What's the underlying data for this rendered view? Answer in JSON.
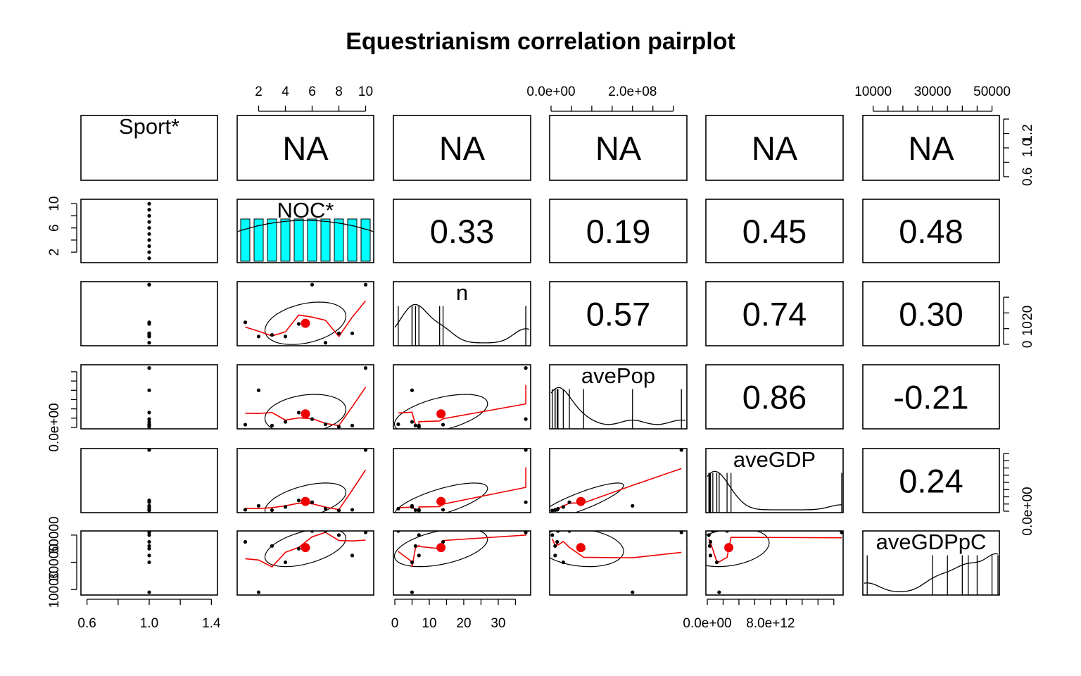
{
  "figure": {
    "title": "Equestrianism correlation pairplot"
  },
  "chart_data": {
    "type": "pairplot",
    "title": "Equestrianism correlation pairplot",
    "variables": [
      "Sport*",
      "NOC*",
      "n",
      "avePop",
      "aveGDP",
      "aveGDPpC"
    ],
    "upper_panel_values": [
      [
        "",
        "NA",
        "NA",
        "NA",
        "NA",
        "NA"
      ],
      [
        "",
        "",
        "0.33",
        "0.19",
        "0.45",
        "0.48"
      ],
      [
        "",
        "",
        "",
        "0.57",
        "0.74",
        "0.30"
      ],
      [
        "",
        "",
        "",
        "",
        "0.86",
        "-0.21"
      ],
      [
        "",
        "",
        "",
        "",
        "",
        "0.24"
      ],
      [
        "",
        "",
        "",
        "",
        "",
        ""
      ]
    ],
    "ranges": [
      [
        0.57,
        1.43
      ],
      [
        0.5,
        10.5
      ],
      [
        0,
        39
      ],
      [
        0,
        330000000.0
      ],
      [
        0,
        17000000000000.0
      ],
      [
        7000,
        52000
      ]
    ],
    "axis_ticks": {
      "top": [
        {
          "var": 1,
          "values": [
            2,
            4,
            6,
            8,
            10
          ],
          "labels": [
            "2",
            "4",
            "6",
            "8",
            "10"
          ],
          "minor": []
        },
        {
          "var": 3,
          "values": [
            0,
            200000000.0
          ],
          "labels": [
            "0.0e+00",
            "2.0e+08"
          ],
          "minor": [
            50000000.0,
            100000000.0,
            150000000.0,
            250000000.0,
            300000000.0
          ]
        },
        {
          "var": 5,
          "values": [
            10000,
            30000,
            50000
          ],
          "labels": [
            "10000",
            "30000",
            "50000"
          ],
          "minor": [
            15000,
            20000,
            25000,
            35000,
            40000,
            45000
          ]
        }
      ],
      "bottom": [
        {
          "var": 0,
          "values": [
            0.6,
            1.0,
            1.4
          ],
          "labels": [
            "0.6",
            "1.0",
            "1.4"
          ],
          "minor": [
            0.8,
            1.2
          ]
        },
        {
          "var": 2,
          "values": [
            0,
            10,
            20,
            30
          ],
          "labels": [
            "0",
            "10",
            "20",
            "30"
          ],
          "minor": [
            5,
            15,
            25,
            35
          ]
        },
        {
          "var": 4,
          "values": [
            0,
            8000000000000.0
          ],
          "labels": [
            "0.0e+00",
            "8.0e+12"
          ],
          "minor": [
            2000000000000.0,
            4000000000000.0,
            6000000000000.0,
            10000000000000.0,
            12000000000000.0,
            14000000000000.0,
            16000000000000.0
          ]
        }
      ],
      "left": [
        {
          "var": 1,
          "values": [
            2,
            6,
            10
          ],
          "labels": [
            "2",
            "6",
            "10"
          ],
          "minor": [
            4,
            8
          ]
        },
        {
          "var": 3,
          "values": [
            0
          ],
          "labels": [
            "0.0e+00"
          ],
          "minor": [
            50000000.0,
            100000000.0,
            150000000.0,
            200000000.0,
            250000000.0,
            300000000.0
          ]
        },
        {
          "var": 5,
          "values": [
            10000,
            30000,
            50000
          ],
          "labels": [
            "10000",
            "30000",
            "50000"
          ],
          "minor": []
        }
      ],
      "right": [
        {
          "var": 0,
          "values": [
            0.6,
            1.0,
            1.2
          ],
          "labels": [
            "0.6",
            "1.0",
            "1.2"
          ],
          "minor": [
            0.8,
            1.4
          ]
        },
        {
          "var": 2,
          "values": [
            0,
            10,
            20
          ],
          "labels": [
            "0",
            "10",
            "20"
          ],
          "minor": [
            30
          ]
        },
        {
          "var": 4,
          "values": [
            0
          ],
          "labels": [
            "0.0e+00"
          ],
          "minor": [
            2000000000000.0,
            4000000000000.0,
            6000000000000.0,
            8000000000000.0,
            10000000000000.0,
            12000000000000.0,
            14000000000000.0,
            16000000000000.0
          ]
        }
      ]
    },
    "observations": [
      {
        "NOC": 1,
        "n": 14,
        "avePop": 15000000.0,
        "aveGDP": 400000000000.0,
        "aveGDPpC": 45000
      },
      {
        "NOC": 2,
        "n": 5,
        "avePop": 200000000.0,
        "aveGDP": 1500000000000.0,
        "aveGDPpC": 8000
      },
      {
        "NOC": 3,
        "n": 6,
        "avePop": 10000000.0,
        "aveGDP": 300000000000.0,
        "aveGDPpC": 42000
      },
      {
        "NOC": 4,
        "n": 5,
        "avePop": 30000000.0,
        "aveGDP": 1200000000000.0,
        "aveGDPpC": 30000
      },
      {
        "NOC": 5,
        "n": 13,
        "avePop": 80000000.0,
        "aveGDP": 3000000000000.0,
        "aveGDPpC": 40000
      },
      {
        "NOC": 6,
        "n": 38,
        "avePop": 45000000.0,
        "aveGDP": 2500000000000.0,
        "aveGDPpC": 53000
      },
      {
        "NOC": 7,
        "n": 1,
        "avePop": 17000000.0,
        "aveGDP": 700000000000.0,
        "aveGDPpC": 53000
      },
      {
        "NOC": 8,
        "n": 7,
        "avePop": 3000000.0,
        "aveGDP": 200000000000.0,
        "aveGDPpC": 50000
      },
      {
        "NOC": 9,
        "n": 7,
        "avePop": 10000000.0,
        "aveGDP": 400000000000.0,
        "aveGDPpC": 35000
      },
      {
        "NOC": 10,
        "n": 38,
        "avePop": 320000000.0,
        "aveGDP": 17000000000000.0,
        "aveGDPpC": 52000
      }
    ],
    "means": {
      "NOC": 5.5,
      "n": 13.4,
      "avePop": 73000000.0,
      "aveGDP": 2800000000000.0,
      "aveGDPpC": 40800
    },
    "noc_histogram": {
      "bins": [
        1,
        2,
        3,
        4,
        5,
        6,
        7,
        8,
        9,
        10
      ],
      "counts": [
        1,
        1,
        1,
        1,
        1,
        1,
        1,
        1,
        1,
        1
      ]
    },
    "colors": {
      "points": "#000000",
      "smooth": "#ee0000",
      "centroid": "#ee0000",
      "ellipse": "#000000",
      "hist_fill": "#00ffff",
      "box": "#000000"
    }
  }
}
